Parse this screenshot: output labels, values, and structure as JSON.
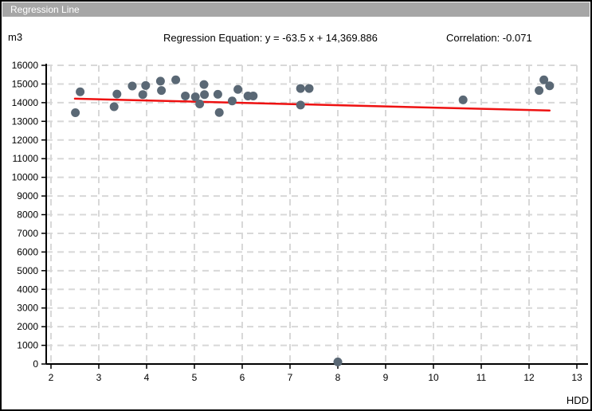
{
  "window": {
    "title": "Regression Line"
  },
  "header": {
    "y_unit_label": "m3",
    "equation_label": "Regression Equation: y = -63.5 x + 14,369.886",
    "correlation_label": "Correlation: -0.071"
  },
  "chart_data": {
    "type": "scatter",
    "title": "Regression Line",
    "xlabel": "HDD",
    "ylabel": "m3",
    "x_axis": {
      "min": 2,
      "max": 13,
      "step": 1
    },
    "y_axis": {
      "min": 0,
      "max": 16000,
      "step": 1000
    },
    "grid": true,
    "legend": false,
    "points": [
      [
        2.51,
        13460
      ],
      [
        2.61,
        14580
      ],
      [
        3.32,
        13780
      ],
      [
        3.38,
        14460
      ],
      [
        3.7,
        14890
      ],
      [
        3.92,
        14430
      ],
      [
        3.98,
        14920
      ],
      [
        4.29,
        15150
      ],
      [
        4.31,
        14650
      ],
      [
        4.61,
        15220
      ],
      [
        4.81,
        14360
      ],
      [
        5.02,
        14310
      ],
      [
        5.11,
        13930
      ],
      [
        5.2,
        14970
      ],
      [
        5.21,
        14430
      ],
      [
        5.49,
        14450
      ],
      [
        5.52,
        13470
      ],
      [
        5.79,
        14090
      ],
      [
        5.91,
        14710
      ],
      [
        6.12,
        14360
      ],
      [
        6.23,
        14360
      ],
      [
        7.22,
        14760
      ],
      [
        7.22,
        13870
      ],
      [
        7.4,
        14760
      ],
      [
        8.0,
        110
      ],
      [
        10.62,
        14150
      ],
      [
        12.21,
        14650
      ],
      [
        12.31,
        15220
      ],
      [
        12.43,
        14900
      ]
    ],
    "regression": {
      "slope": -63.5,
      "intercept": 14369.886,
      "correlation": -0.071,
      "x_start": 2.5,
      "x_end": 12.43
    },
    "colors": {
      "point": "#5a6875",
      "regression_line": "#ee1111",
      "gridline": "#d8d8d8",
      "axis": "#000000",
      "titlebar": "#a6a6a6"
    }
  }
}
